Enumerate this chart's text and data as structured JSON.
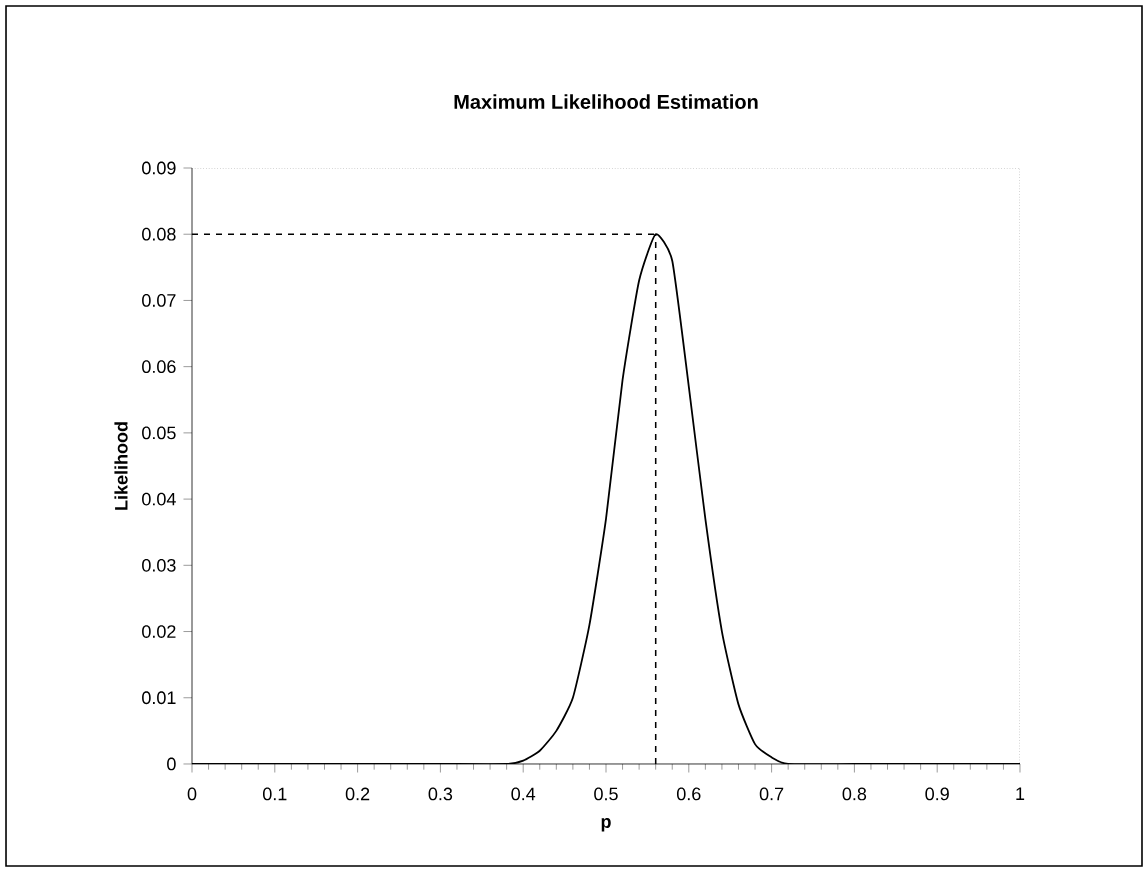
{
  "chart_data": {
    "type": "line",
    "title": "Maximum Likelihood Estimation",
    "xlabel": "p",
    "ylabel": "Likelihood",
    "x": [
      0,
      0.1,
      0.2,
      0.3,
      0.38,
      0.4,
      0.42,
      0.44,
      0.46,
      0.48,
      0.5,
      0.52,
      0.54,
      0.56,
      0.58,
      0.6,
      0.62,
      0.64,
      0.66,
      0.68,
      0.7,
      0.72,
      0.8,
      0.9,
      1
    ],
    "series": [
      {
        "color": "#000000",
        "values": [
          0,
          0,
          0,
          0,
          0,
          0.0005,
          0.002,
          0.005,
          0.01,
          0.021,
          0.037,
          0.058,
          0.073,
          0.08,
          0.076,
          0.057,
          0.037,
          0.02,
          0.009,
          0.003,
          0.001,
          0,
          0,
          0,
          0
        ]
      }
    ],
    "xlim": [
      0,
      1
    ],
    "ylim": [
      0,
      0.09
    ],
    "xticks": [
      0,
      0.1,
      0.2,
      0.3,
      0.4,
      0.5,
      0.6,
      0.7,
      0.8,
      0.9,
      1
    ],
    "yticks": [
      0,
      0.01,
      0.02,
      0.03,
      0.04,
      0.05,
      0.06,
      0.07,
      0.08,
      0.09
    ],
    "ref_lines": [
      {
        "axis": "x",
        "value": 0.56,
        "line_style": "dashed",
        "color": "#000000"
      },
      {
        "axis": "y",
        "value": 0.08,
        "line_style": "dashed",
        "color": "#000000"
      }
    ],
    "marker": "none",
    "line_style": "solid"
  }
}
